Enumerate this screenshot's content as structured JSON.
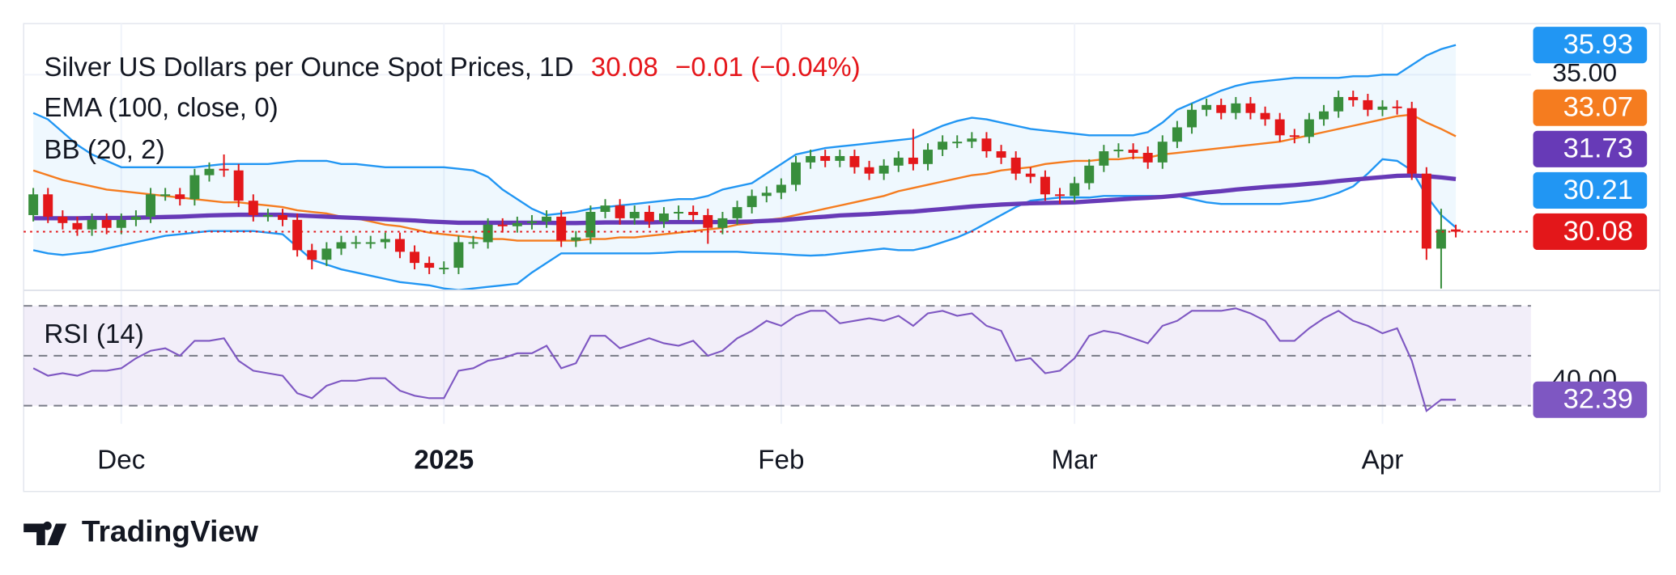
{
  "chart_data": [
    {
      "type": "candlestick",
      "title": "Silver US Dollars per Ounce Spot Prices, 1D",
      "header_values": [
        30.08,
        -0.01,
        -0.04
      ],
      "header_value_labels": [
        "30.08",
        "−0.01",
        "(−0.04%)"
      ],
      "categories": [
        null,
        null,
        null,
        null,
        null,
        null,
        "Dec",
        null,
        null,
        null,
        null,
        null,
        null,
        null,
        null,
        null,
        null,
        null,
        null,
        null,
        null,
        null,
        null,
        null,
        null,
        null,
        null,
        null,
        "2025",
        null,
        null,
        null,
        null,
        null,
        null,
        null,
        null,
        null,
        null,
        null,
        null,
        null,
        null,
        null,
        null,
        null,
        null,
        null,
        null,
        null,
        null,
        "Feb",
        null,
        null,
        null,
        null,
        null,
        null,
        null,
        null,
        null,
        null,
        null,
        null,
        null,
        null,
        null,
        null,
        null,
        null,
        null,
        "Mar",
        null,
        null,
        null,
        null,
        null,
        null,
        null,
        null,
        null,
        null,
        null,
        null,
        null,
        null,
        null,
        null,
        null,
        null,
        null,
        null,
        "Apr",
        null,
        null,
        null,
        null,
        null
      ],
      "open": [
        30.6,
        31.25,
        30.55,
        30.35,
        30.15,
        30.45,
        30.2,
        30.45,
        30.55,
        31.25,
        31.25,
        31.1,
        31.85,
        32.05,
        32.0,
        31.05,
        30.6,
        30.6,
        30.45,
        29.5,
        29.2,
        29.55,
        29.75,
        29.75,
        29.75,
        29.85,
        29.45,
        29.1,
        28.95,
        28.95,
        29.75,
        29.75,
        30.3,
        30.25,
        30.35,
        30.4,
        30.55,
        29.8,
        29.9,
        30.7,
        30.9,
        30.5,
        30.7,
        30.4,
        30.65,
        30.7,
        30.6,
        30.2,
        30.5,
        30.85,
        31.2,
        31.3,
        31.55,
        32.25,
        32.45,
        32.3,
        32.45,
        32.1,
        31.9,
        32.15,
        32.4,
        32.2,
        32.65,
        32.9,
        32.9,
        33.0,
        32.6,
        32.4,
        31.9,
        31.8,
        31.25,
        31.2,
        31.6,
        32.15,
        32.6,
        32.65,
        32.55,
        32.25,
        32.9,
        33.35,
        33.9,
        34.05,
        33.8,
        34.1,
        33.8,
        33.6,
        33.1,
        33.05,
        33.6,
        33.85,
        34.3,
        34.2,
        33.9,
        34.0,
        33.95,
        31.9,
        29.55,
        30.15
      ],
      "high": [
        31.45,
        31.45,
        30.75,
        30.55,
        30.65,
        30.65,
        30.65,
        30.75,
        31.45,
        31.45,
        31.45,
        32.05,
        32.25,
        32.5,
        32.2,
        31.25,
        30.8,
        30.8,
        30.65,
        29.7,
        29.75,
        29.95,
        29.95,
        29.95,
        30.05,
        30.05,
        29.65,
        29.3,
        29.15,
        29.95,
        29.95,
        30.5,
        30.5,
        30.55,
        30.6,
        30.75,
        30.75,
        30.1,
        30.9,
        31.1,
        31.1,
        30.9,
        30.9,
        30.85,
        30.9,
        30.9,
        30.8,
        30.7,
        31.05,
        31.4,
        31.5,
        31.75,
        32.45,
        32.65,
        32.65,
        32.65,
        32.65,
        32.3,
        32.35,
        32.6,
        33.3,
        32.85,
        33.1,
        33.1,
        33.2,
        33.2,
        32.8,
        32.6,
        32.1,
        32.0,
        31.45,
        31.8,
        32.35,
        32.8,
        32.85,
        32.85,
        32.75,
        33.1,
        33.55,
        34.1,
        34.25,
        34.25,
        34.3,
        34.3,
        34.0,
        33.8,
        33.3,
        33.8,
        34.05,
        34.5,
        34.5,
        34.4,
        34.2,
        34.2,
        34.15,
        32.1,
        30.8,
        30.3
      ],
      "low": [
        30.4,
        30.35,
        30.15,
        29.95,
        29.95,
        30.0,
        30.0,
        30.25,
        30.35,
        31.05,
        30.9,
        30.9,
        31.65,
        31.8,
        30.85,
        30.4,
        30.4,
        30.25,
        29.3,
        28.9,
        29.0,
        29.35,
        29.55,
        29.55,
        29.55,
        29.25,
        28.9,
        28.75,
        28.75,
        28.75,
        29.55,
        29.55,
        30.05,
        30.05,
        30.15,
        30.2,
        29.6,
        29.6,
        29.7,
        30.5,
        30.3,
        30.3,
        30.2,
        30.2,
        30.45,
        30.4,
        29.7,
        30.0,
        30.3,
        30.65,
        31.0,
        31.1,
        31.35,
        32.05,
        32.1,
        32.1,
        31.9,
        31.7,
        31.7,
        31.95,
        32.0,
        32.0,
        32.45,
        32.7,
        32.7,
        32.4,
        32.2,
        31.7,
        31.6,
        31.05,
        30.95,
        31.0,
        31.4,
        31.95,
        32.4,
        32.35,
        32.05,
        32.05,
        32.7,
        33.15,
        33.7,
        33.6,
        33.6,
        33.6,
        33.4,
        32.9,
        32.85,
        32.85,
        33.4,
        33.65,
        34.0,
        33.7,
        33.7,
        33.75,
        31.7,
        29.2,
        28.3,
        29.9
      ],
      "close": [
        31.25,
        30.55,
        30.35,
        30.15,
        30.45,
        30.2,
        30.45,
        30.55,
        31.25,
        31.25,
        31.1,
        31.85,
        32.05,
        32.0,
        31.05,
        30.6,
        30.6,
        30.45,
        29.5,
        29.2,
        29.55,
        29.75,
        29.75,
        29.75,
        29.85,
        29.45,
        29.1,
        28.95,
        28.95,
        29.75,
        29.75,
        30.3,
        30.25,
        30.35,
        30.4,
        30.55,
        29.8,
        29.9,
        30.7,
        30.9,
        30.5,
        30.7,
        30.4,
        30.65,
        30.7,
        30.6,
        30.2,
        30.5,
        30.85,
        31.2,
        31.3,
        31.55,
        32.25,
        32.45,
        32.3,
        32.45,
        32.1,
        31.9,
        32.15,
        32.4,
        32.2,
        32.65,
        32.9,
        32.9,
        33.0,
        32.6,
        32.4,
        31.9,
        31.8,
        31.25,
        31.2,
        31.6,
        32.15,
        32.6,
        32.65,
        32.55,
        32.25,
        32.9,
        33.35,
        33.9,
        34.05,
        33.8,
        34.1,
        33.8,
        33.6,
        33.1,
        33.05,
        33.6,
        33.85,
        34.3,
        34.2,
        33.9,
        34.0,
        33.95,
        31.9,
        29.55,
        30.15,
        30.08
      ],
      "up_color": "#388e3c",
      "down_color": "#e3171a",
      "ema": {
        "name": "EMA (100, close, 0)",
        "color": "#673ab7",
        "values": [
          30.5,
          30.5,
          30.5,
          30.5,
          30.51,
          30.51,
          30.51,
          30.52,
          30.53,
          30.54,
          30.55,
          30.57,
          30.59,
          30.6,
          30.61,
          30.61,
          30.61,
          30.61,
          30.59,
          30.57,
          30.55,
          30.53,
          30.51,
          30.49,
          30.47,
          30.45,
          30.43,
          30.4,
          30.38,
          30.36,
          30.36,
          30.36,
          30.36,
          30.36,
          30.36,
          30.36,
          30.35,
          30.35,
          30.36,
          30.37,
          30.37,
          30.37,
          30.37,
          30.38,
          30.38,
          30.38,
          30.38,
          30.38,
          30.39,
          30.4,
          30.42,
          30.44,
          30.48,
          30.52,
          30.55,
          30.59,
          30.61,
          30.63,
          30.66,
          30.69,
          30.71,
          30.75,
          30.79,
          30.83,
          30.87,
          30.9,
          30.93,
          30.95,
          30.97,
          30.98,
          30.99,
          31.0,
          31.03,
          31.06,
          31.09,
          31.12,
          31.14,
          31.17,
          31.21,
          31.26,
          31.31,
          31.35,
          31.4,
          31.44,
          31.48,
          31.51,
          31.54,
          31.58,
          31.62,
          31.67,
          31.71,
          31.75,
          31.79,
          31.83,
          31.84,
          31.82,
          31.78,
          31.73
        ]
      },
      "bb": {
        "name": "BB (20, 2)",
        "band_color": "#2196f3",
        "basis_color": "#f57c1f",
        "upper": [
          33.8,
          33.6,
          33.2,
          32.8,
          32.5,
          32.3,
          32.1,
          32.1,
          32.1,
          32.1,
          32.1,
          32.1,
          32.15,
          32.2,
          32.2,
          32.2,
          32.2,
          32.25,
          32.3,
          32.3,
          32.3,
          32.2,
          32.2,
          32.15,
          32.1,
          32.1,
          32.1,
          32.1,
          32.1,
          32.05,
          32.0,
          31.8,
          31.4,
          31.1,
          30.8,
          30.6,
          30.65,
          30.7,
          30.8,
          30.85,
          30.9,
          30.95,
          31.0,
          31.05,
          31.1,
          31.1,
          31.2,
          31.4,
          31.5,
          31.6,
          31.9,
          32.2,
          32.5,
          32.6,
          32.7,
          32.75,
          32.8,
          32.85,
          32.9,
          32.95,
          33.0,
          33.2,
          33.4,
          33.55,
          33.65,
          33.6,
          33.5,
          33.4,
          33.3,
          33.25,
          33.2,
          33.15,
          33.1,
          33.1,
          33.1,
          33.1,
          33.2,
          33.5,
          33.9,
          34.1,
          34.3,
          34.5,
          34.65,
          34.75,
          34.8,
          34.85,
          34.9,
          34.9,
          34.9,
          34.9,
          34.95,
          34.95,
          35.0,
          35.0,
          35.3,
          35.6,
          35.8,
          35.93
        ],
        "basis": [
          32.0,
          31.85,
          31.7,
          31.6,
          31.5,
          31.4,
          31.35,
          31.3,
          31.25,
          31.2,
          31.15,
          31.1,
          31.05,
          31.0,
          31.0,
          30.95,
          30.9,
          30.85,
          30.75,
          30.7,
          30.65,
          30.55,
          30.5,
          30.4,
          30.3,
          30.25,
          30.15,
          30.05,
          30.0,
          29.95,
          29.9,
          29.85,
          29.85,
          29.8,
          29.8,
          29.8,
          29.8,
          29.8,
          29.85,
          29.85,
          29.9,
          29.9,
          29.95,
          30.0,
          30.05,
          30.1,
          30.15,
          30.2,
          30.3,
          30.35,
          30.45,
          30.5,
          30.6,
          30.7,
          30.8,
          30.9,
          31.0,
          31.1,
          31.2,
          31.35,
          31.45,
          31.55,
          31.65,
          31.75,
          31.85,
          31.9,
          32.0,
          32.05,
          32.1,
          32.2,
          32.25,
          32.3,
          32.3,
          32.35,
          32.35,
          32.4,
          32.4,
          32.5,
          32.55,
          32.6,
          32.65,
          32.7,
          32.75,
          32.8,
          32.85,
          32.9,
          33.0,
          33.1,
          33.2,
          33.3,
          33.4,
          33.5,
          33.6,
          33.7,
          33.75,
          33.5,
          33.3,
          33.07
        ],
        "lower": [
          29.5,
          29.4,
          29.35,
          29.4,
          29.45,
          29.55,
          29.65,
          29.75,
          29.85,
          29.95,
          30.0,
          30.05,
          30.1,
          30.1,
          30.1,
          30.1,
          30.05,
          30.0,
          29.6,
          29.2,
          29.05,
          28.9,
          28.8,
          28.7,
          28.6,
          28.5,
          28.45,
          28.4,
          28.3,
          28.25,
          28.3,
          28.35,
          28.4,
          28.45,
          28.8,
          29.1,
          29.4,
          29.4,
          29.4,
          29.4,
          29.4,
          29.4,
          29.4,
          29.42,
          29.45,
          29.45,
          29.45,
          29.45,
          29.45,
          29.42,
          29.4,
          29.38,
          29.35,
          29.33,
          29.35,
          29.4,
          29.45,
          29.5,
          29.55,
          29.5,
          29.5,
          29.6,
          29.75,
          29.9,
          30.1,
          30.35,
          30.6,
          30.85,
          31.05,
          31.1,
          31.15,
          31.15,
          31.15,
          31.2,
          31.2,
          31.2,
          31.2,
          31.2,
          31.2,
          31.1,
          31.0,
          30.95,
          30.95,
          30.95,
          30.95,
          30.95,
          31.0,
          31.05,
          31.15,
          31.3,
          31.5,
          31.9,
          32.35,
          32.3,
          32.0,
          31.2,
          30.6,
          30.21
        ]
      },
      "ylim": [
        28.26,
        36.6
      ],
      "yticks": [
        {
          "value": 35,
          "label": "35.00"
        }
      ],
      "grid": true
    },
    {
      "type": "line",
      "title": "RSI (14)",
      "color": "#7e57c2",
      "values": [
        45,
        42,
        43,
        42,
        44,
        44,
        45,
        49,
        52,
        53,
        50,
        56,
        56,
        57,
        48,
        44,
        43,
        42,
        35,
        33,
        38,
        40,
        40,
        41,
        41,
        36,
        34,
        33,
        33,
        44,
        45,
        48,
        49,
        51,
        51,
        54,
        45,
        47,
        58,
        58,
        53,
        55,
        57,
        55,
        54,
        56,
        50,
        52,
        57,
        60,
        64,
        62,
        66,
        68,
        68,
        63,
        64,
        65,
        64,
        66,
        62,
        67,
        68,
        66,
        67,
        62,
        60,
        48,
        49,
        43,
        44,
        49,
        58,
        60,
        59,
        57,
        55,
        62,
        64,
        68,
        68,
        68,
        69,
        67,
        64,
        56,
        56,
        61,
        65,
        68,
        64,
        62,
        59,
        61,
        48,
        27.9,
        32.4,
        32.39
      ],
      "ylim": [
        22.7,
        76.45
      ],
      "yticks": [
        {
          "value": 40,
          "label": "40.00"
        }
      ],
      "bands": [
        30,
        50,
        70
      ]
    }
  ],
  "footer": {
    "brand": "TradingView"
  }
}
